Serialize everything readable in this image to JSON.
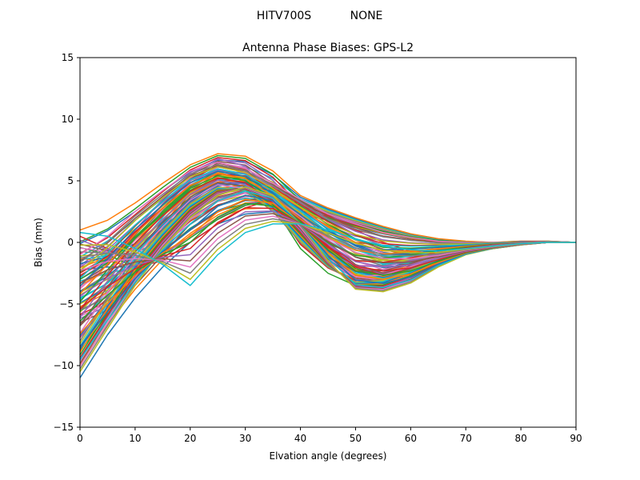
{
  "header": {
    "antenna": "HITV700S",
    "radome": "NONE"
  },
  "chart_data": {
    "type": "line",
    "title": "Antenna Phase Biases: GPS-L2",
    "xlabel": "Elvation angle (degrees)",
    "ylabel": "Bias (mm)",
    "xlim": [
      0,
      90
    ],
    "ylim": [
      -15,
      15
    ],
    "xticks": [
      0,
      10,
      20,
      30,
      40,
      50,
      60,
      70,
      80,
      90
    ],
    "yticks": [
      -15,
      -10,
      -5,
      0,
      5,
      10,
      15
    ],
    "x": [
      0,
      5,
      10,
      15,
      20,
      25,
      30,
      35,
      40,
      45,
      50,
      55,
      60,
      65,
      70,
      75,
      80,
      85,
      90
    ],
    "legend": "none",
    "grid": false,
    "colors": [
      "#1f77b4",
      "#ff7f0e",
      "#2ca02c",
      "#d62728",
      "#9467bd",
      "#8c564b",
      "#e377c2",
      "#7f7f7f",
      "#bcbd22",
      "#17becf"
    ],
    "series_envelopes": [
      {
        "values": [
          -11.0,
          -7.5,
          -4.5,
          -2.0,
          0.0,
          1.5,
          2.3,
          2.5,
          2.3,
          1.8,
          1.2,
          0.7,
          0.3,
          0.0,
          -0.1,
          -0.1,
          0.0,
          0.0,
          0.0
        ]
      },
      {
        "values": [
          1.0,
          1.8,
          3.2,
          4.8,
          6.3,
          7.2,
          7.0,
          5.8,
          3.8,
          2.8,
          2.0,
          1.3,
          0.7,
          0.3,
          0.1,
          0.0,
          0.1,
          0.1,
          0.0
        ]
      },
      {
        "values": [
          -9.5,
          -6.0,
          -2.0,
          1.0,
          4.0,
          5.5,
          5.0,
          3.0,
          -0.5,
          -2.5,
          -3.5,
          -3.0,
          -2.0,
          -1.2,
          -0.6,
          -0.3,
          -0.1,
          0.0,
          0.0
        ]
      },
      {
        "values": [
          0.5,
          -0.5,
          -2.0,
          -1.5,
          0.0,
          1.5,
          2.8,
          3.5,
          3.2,
          2.2,
          1.0,
          0.0,
          -0.7,
          -1.0,
          -0.8,
          -0.5,
          -0.2,
          0.0,
          0.0
        ]
      },
      {
        "values": [
          -3.0,
          -1.5,
          1.0,
          3.5,
          5.5,
          6.8,
          6.2,
          4.0,
          1.0,
          -1.5,
          -3.0,
          -3.2,
          -2.5,
          -1.5,
          -0.8,
          -0.4,
          -0.1,
          0.0,
          0.0
        ]
      },
      {
        "values": [
          -6.5,
          -5.5,
          -3.5,
          -1.0,
          1.5,
          3.0,
          3.8,
          3.5,
          2.0,
          0.0,
          -1.8,
          -2.5,
          -2.0,
          -1.2,
          -0.6,
          -0.3,
          -0.1,
          0.0,
          0.0
        ]
      },
      {
        "values": [
          -1.0,
          0.5,
          2.5,
          4.2,
          5.8,
          6.5,
          6.0,
          4.8,
          3.5,
          2.3,
          1.5,
          0.8,
          0.4,
          0.1,
          0.0,
          0.0,
          0.0,
          0.0,
          0.0
        ]
      },
      {
        "values": [
          -8.0,
          -4.5,
          -1.5,
          1.0,
          3.2,
          4.5,
          4.2,
          2.5,
          0.0,
          -2.0,
          -3.2,
          -3.0,
          -2.2,
          -1.3,
          -0.7,
          -0.3,
          -0.1,
          0.0,
          0.0
        ]
      },
      {
        "values": [
          -10.5,
          -7.0,
          -3.5,
          -0.5,
          2.0,
          3.8,
          4.5,
          3.8,
          1.5,
          -1.5,
          -3.8,
          -4.0,
          -3.3,
          -2.0,
          -1.0,
          -0.5,
          -0.2,
          0.0,
          0.0
        ]
      },
      {
        "values": [
          0.8,
          0.5,
          -0.5,
          -1.8,
          -3.5,
          -1.0,
          0.8,
          1.5,
          1.5,
          1.0,
          0.3,
          -0.3,
          -0.6,
          -0.7,
          -0.5,
          -0.3,
          -0.1,
          0.0,
          0.0
        ]
      }
    ],
    "series_count": 100
  }
}
